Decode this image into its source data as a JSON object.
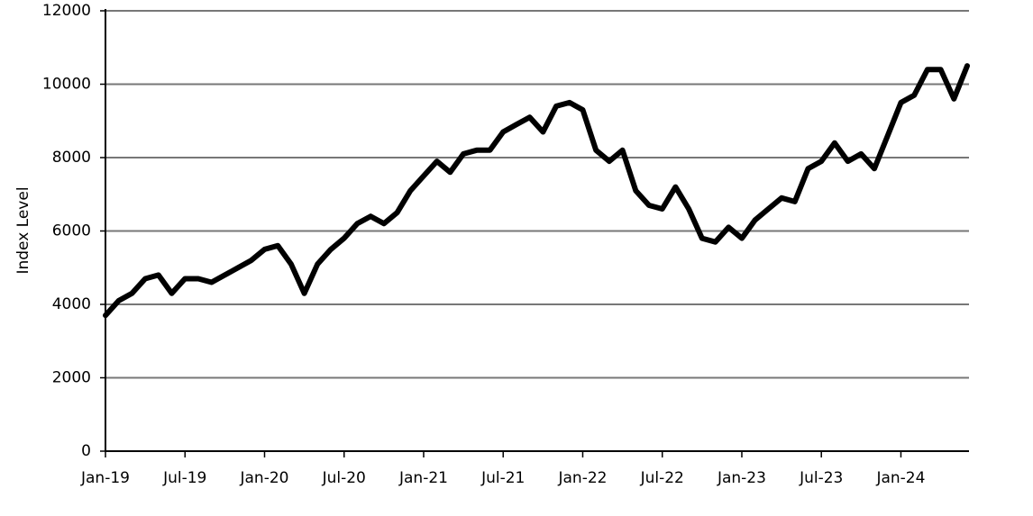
{
  "chart_data": {
    "type": "line",
    "y_label": "Index Level",
    "x": [
      "2019-01",
      "2019-02",
      "2019-03",
      "2019-04",
      "2019-05",
      "2019-06",
      "2019-07",
      "2019-08",
      "2019-09",
      "2019-10",
      "2019-11",
      "2019-12",
      "2020-01",
      "2020-02",
      "2020-03",
      "2020-04",
      "2020-05",
      "2020-06",
      "2020-07",
      "2020-08",
      "2020-09",
      "2020-10",
      "2020-11",
      "2020-12",
      "2021-01",
      "2021-02",
      "2021-03",
      "2021-04",
      "2021-05",
      "2021-06",
      "2021-07",
      "2021-08",
      "2021-09",
      "2021-10",
      "2021-11",
      "2021-12",
      "2022-01",
      "2022-02",
      "2022-03",
      "2022-04",
      "2022-05",
      "2022-06",
      "2022-07",
      "2022-08",
      "2022-09",
      "2022-10",
      "2022-11",
      "2022-12",
      "2023-01",
      "2023-02",
      "2023-03",
      "2023-04",
      "2023-05",
      "2023-06",
      "2023-07",
      "2023-08",
      "2023-09",
      "2023-10",
      "2023-11",
      "2023-12",
      "2024-01",
      "2024-02",
      "2024-03",
      "2024-04",
      "2024-05",
      "2024-06"
    ],
    "series": [
      {
        "color": "#000000",
        "values": [
          3700,
          4100,
          4300,
          4700,
          4800,
          4300,
          4700,
          4700,
          4600,
          4800,
          5000,
          5200,
          5500,
          5600,
          5100,
          4300,
          5100,
          5500,
          5800,
          6200,
          6400,
          6200,
          6500,
          7100,
          7500,
          7900,
          7600,
          8100,
          8200,
          8200,
          8700,
          8900,
          9100,
          8700,
          9400,
          9500,
          9300,
          8200,
          7900,
          8200,
          7100,
          6700,
          6600,
          7200,
          6600,
          5800,
          5700,
          6100,
          5800,
          6300,
          6600,
          6900,
          6800,
          7700,
          7900,
          8400,
          7900,
          8100,
          7700,
          8600,
          9500,
          9700,
          10400,
          10400,
          9600,
          10500
        ]
      }
    ],
    "ylim": [
      0,
      12000
    ],
    "yticks": [
      0,
      2000,
      4000,
      6000,
      8000,
      10000,
      12000
    ],
    "xticks": [
      {
        "value": "2019-01",
        "label": "Jan-19"
      },
      {
        "value": "2019-07",
        "label": "Jul-19"
      },
      {
        "value": "2020-01",
        "label": "Jan-20"
      },
      {
        "value": "2020-07",
        "label": "Jul-20"
      },
      {
        "value": "2021-01",
        "label": "Jan-21"
      },
      {
        "value": "2021-07",
        "label": "Jul-21"
      },
      {
        "value": "2022-01",
        "label": "Jan-22"
      },
      {
        "value": "2022-07",
        "label": "Jul-22"
      },
      {
        "value": "2023-01",
        "label": "Jan-23"
      },
      {
        "value": "2023-07",
        "label": "Jul-23"
      },
      {
        "value": "2024-01",
        "label": "Jan-24"
      }
    ],
    "grid": true
  }
}
